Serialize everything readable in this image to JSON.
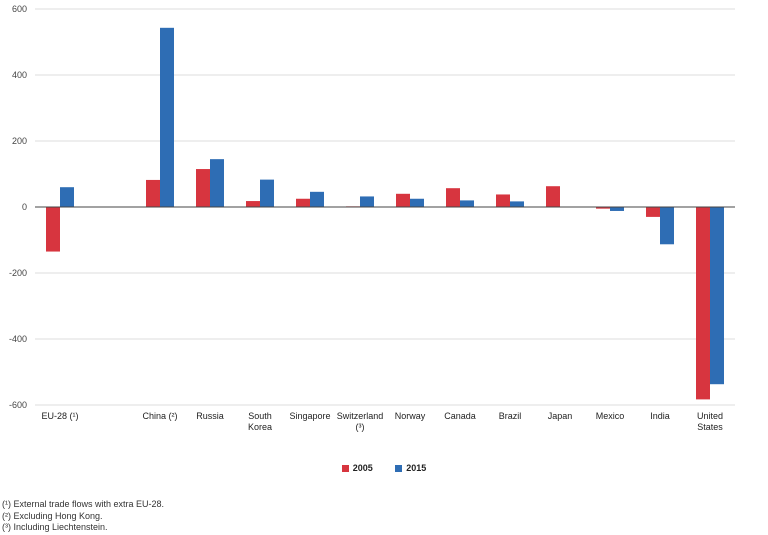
{
  "chart_data": {
    "type": "bar",
    "categories": [
      [
        "EU-28 (¹)"
      ],
      [
        ""
      ],
      [
        "China (²)"
      ],
      [
        "Russia"
      ],
      [
        "South",
        "Korea"
      ],
      [
        "Singapore"
      ],
      [
        "Switzerland",
        "(³)"
      ],
      [
        "Norway"
      ],
      [
        "Canada"
      ],
      [
        "Brazil"
      ],
      [
        "Japan"
      ],
      [
        "Mexico"
      ],
      [
        "India"
      ],
      [
        "United",
        "States"
      ]
    ],
    "series": [
      {
        "name": "2005",
        "color": "#d7353f",
        "values": [
          -135,
          null,
          82,
          115,
          18,
          25,
          2,
          40,
          57,
          38,
          63,
          -5,
          -30,
          -583
        ]
      },
      {
        "name": "2015",
        "color": "#2e6db4",
        "values": [
          60,
          null,
          543,
          145,
          83,
          46,
          32,
          25,
          20,
          17,
          0,
          -12,
          -113,
          -537
        ]
      }
    ],
    "yticks": [
      600,
      400,
      200,
      0,
      -200,
      -400,
      -600
    ],
    "ylim": [
      -600,
      600
    ],
    "grid": true,
    "legend_position": "bottom"
  },
  "notes": [
    "(¹) External trade flows with extra EU-28.",
    "(²) Excluding Hong Kong.",
    "(³) Including Liechtenstein."
  ]
}
